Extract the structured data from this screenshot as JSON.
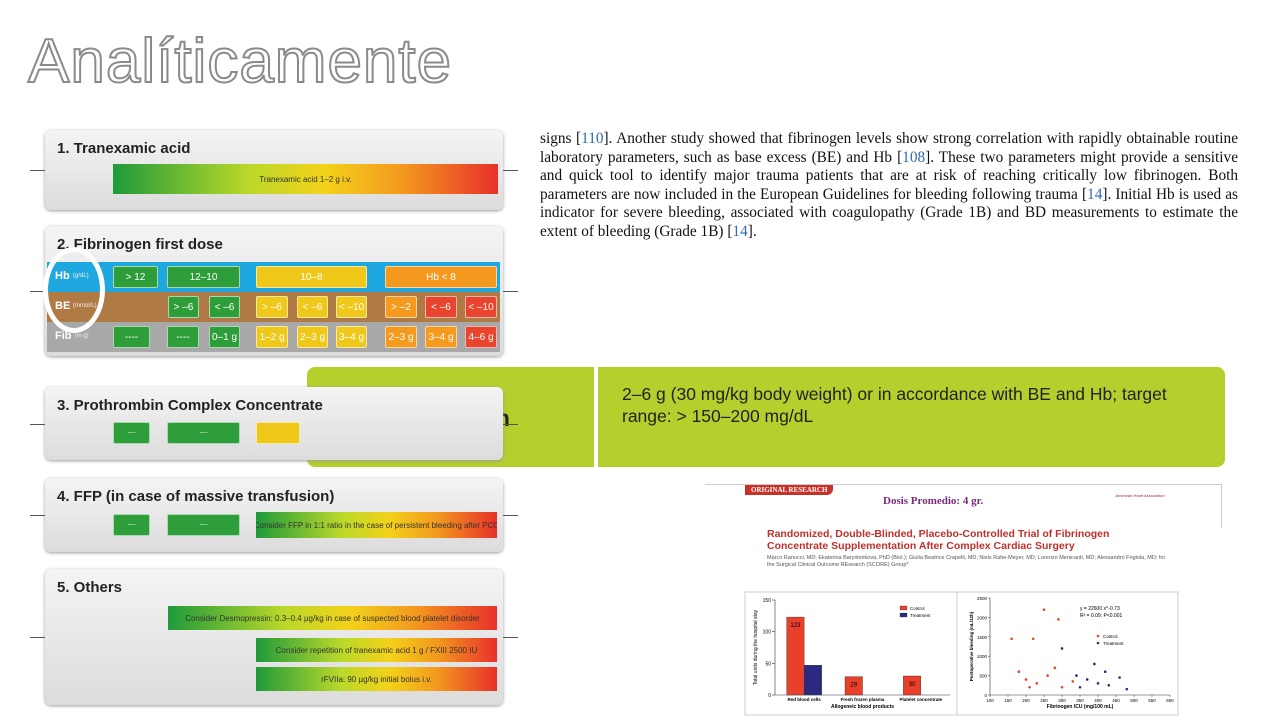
{
  "title": "Analíticamente",
  "algorithm": {
    "s1": {
      "heading": "1. Tranexamic acid",
      "bar": "Tranexamic acid 1–2 g i.v."
    },
    "s2": {
      "heading": "2. Fibrinogen first dose",
      "rows": [
        {
          "label": "Hb",
          "unit": "(g/dL)",
          "cells": [
            "> 12",
            "12–10",
            "10–8",
            "Hb < 8"
          ]
        },
        {
          "label": "BE",
          "unit": "(mmol/L)",
          "cells": [
            "> –6",
            "< –6",
            "> –6",
            "< –6",
            "< –10",
            "> –2",
            "< –6",
            "< –10"
          ]
        },
        {
          "label": "Fib",
          "unit": "(in g)",
          "cells": [
            "----",
            "----",
            "0–1 g",
            "1–2 g",
            "2–3 g",
            "3–4 g",
            "2–3 g",
            "3–4 g",
            "4–6 g"
          ]
        }
      ]
    },
    "s3": {
      "heading": "3. Prothrombin Complex Concentrate",
      "cells": [
        "----",
        "----"
      ]
    },
    "s4": {
      "heading": "4. FFP (in case of massive transfusion)",
      "cells": [
        "----",
        "----"
      ],
      "bar": "Consider FFP in 1:1 ratio in the case of persistent bleeding after PCC"
    },
    "s5": {
      "heading": "5. Others",
      "bars": [
        "Consider Desmopressin: 0.3–0.4 µg/kg in case of suspected blood platelet disorder",
        "Consider repetition of tranexamic acid 1 g / FXIII 2500 IU",
        "rFVIIa: 90 µg/kg initial bolus i.v."
      ]
    }
  },
  "paragraph": [
    "signs [",
    "110",
    "].  Another study showed that fibrinogen levels show strong correlation with rapidly obtainable routine laboratory parameters, such as base excess (BE) and Hb [",
    "108",
    "]. These two parameters might provide a sensitive and quick tool to identify major trauma patients that are at risk of reaching critically low fibrinogen.  Both parameters are now included in the European Guidelines for bleeding following trauma [",
    "14",
    "].  Initial Hb is used as indicator for severe bleeding, associated with coagulopathy (Grade 1B) and BD measurements to estimate the extent of bleeding (Grade 1B) [",
    "14",
    "]."
  ],
  "fibrinogen": {
    "label": "Fibrinogen",
    "text": "2–6 g (30 mg/kg body weight) or in accordance with BE and Hb; target range: > 150–200 mg/dL"
  },
  "paper": {
    "badge": "ORIGINAL RESEARCH",
    "dose": "Dosis Promedio:  4 gr.",
    "logo": "American Heart Association",
    "title": "Randomized, Double-Blinded, Placebo-Controlled Trial of Fibrinogen Concentrate Supplementation After Complex Cardiac Surgery",
    "authors": "Marco Ranucci, MD; Ekaterina Baryshnikova, PhD (Biol.); Giulia Beatrice Crapelli, MD; Niels Rahe-Meyer, MD; Lorenzo Menicanti, MD; Alessandro Frigiola, MD; for the Surgical Clinical Outcome REsearch (SCORE) Group*"
  },
  "chart_data": [
    {
      "type": "bar",
      "ylabel": "Total units during the hospital stay",
      "xlabel": "Allogeneic blood products",
      "categories": [
        "Red blood cells",
        "Fresh frozen plasma",
        "Platelet concentrate"
      ],
      "series": [
        {
          "name": "Control",
          "color": "#e8402a",
          "values": [
            123,
            29,
            30
          ],
          "show_labels": true
        },
        {
          "name": "Treatment",
          "color": "#2a2a80",
          "values": [
            47,
            0,
            0
          ],
          "show_labels": false
        }
      ],
      "ylim": [
        0,
        150
      ],
      "yticks": [
        0,
        50,
        100,
        150
      ]
    },
    {
      "type": "scatter",
      "xlabel": "Fibrinogen ICU (mg/100 mL)",
      "ylabel": "Postoperative bleeding (mL/12h)",
      "annotation": "y = 22600 x^-0.73",
      "annotation2": "R² = 0.09; P<0.001",
      "series": [
        {
          "name": "Control",
          "color": "#e8402a",
          "x": [
            160,
            220,
            250,
            290,
            180,
            200,
            230,
            260,
            300,
            330,
            280,
            210
          ],
          "y": [
            1450,
            1450,
            2200,
            1950,
            600,
            400,
            300,
            500,
            200,
            350,
            700,
            200
          ]
        },
        {
          "name": "Treatment",
          "color": "#2a2a80",
          "x": [
            300,
            340,
            370,
            400,
            430,
            460,
            350,
            420,
            480,
            390
          ],
          "y": [
            1200,
            500,
            400,
            300,
            250,
            450,
            200,
            600,
            150,
            800
          ]
        }
      ],
      "xlim": [
        100,
        600
      ],
      "xticks": [
        100,
        150,
        200,
        250,
        300,
        350,
        400,
        450,
        500,
        550,
        600
      ],
      "ylim": [
        0,
        2500
      ],
      "yticks": [
        0,
        500,
        1000,
        1500,
        2000,
        2500
      ]
    }
  ]
}
